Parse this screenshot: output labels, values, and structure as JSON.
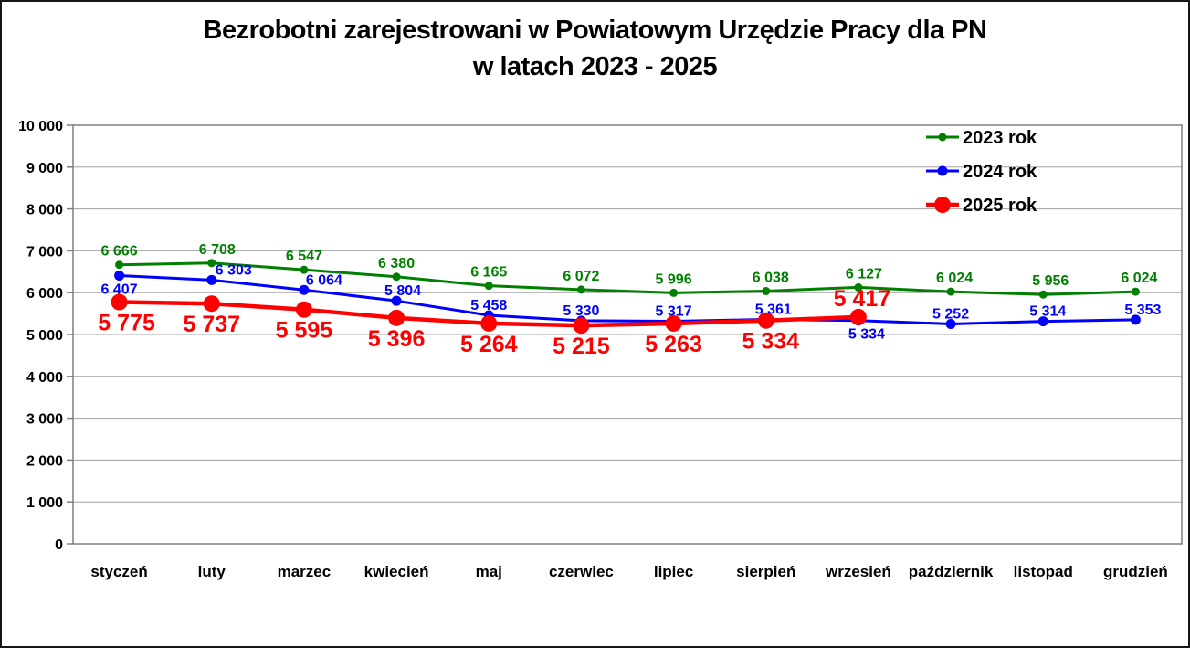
{
  "title": {
    "line1": "Bezrobotni zarejestrowani w Powiatowym Urzędzie Pracy dla PN",
    "line2": "w latach 2023 - 2025"
  },
  "chart_data": {
    "type": "line",
    "title": "Bezrobotni zarejestrowani w Powiatowym Urzędzie Pracy dla PN w latach 2023 - 2025",
    "xlabel": "",
    "ylabel": "",
    "grid": "horizontal",
    "legend_position": "top-right",
    "ylim": [
      0,
      10000
    ],
    "ytick_step": 1000,
    "ytick_labels": [
      "0",
      "1 000",
      "2 000",
      "3 000",
      "4 000",
      "5 000",
      "6 000",
      "7 000",
      "8 000",
      "9 000",
      "10 000"
    ],
    "categories": [
      "styczeń",
      "luty",
      "marzec",
      "kwiecień",
      "maj",
      "czerwiec",
      "lipiec",
      "sierpień",
      "wrzesień",
      "październik",
      "listopad",
      "grudzień"
    ],
    "series": [
      {
        "name": "2023 rok",
        "color": "#008000",
        "line_width": 3,
        "marker_radius": 4.5,
        "label_font_size": 16,
        "label_dy_above": -10,
        "label_dy_below": 20,
        "values": [
          6666,
          6708,
          6547,
          6380,
          6165,
          6072,
          5996,
          6038,
          6127,
          6024,
          5956,
          6024
        ],
        "labels": [
          "6 666",
          "6 708",
          "6 547",
          "6 380",
          "6 165",
          "6 072",
          "5 996",
          "6 038",
          "6 127",
          "6 024",
          "5 956",
          "6 024"
        ],
        "label_placement": [
          "above",
          "above",
          "above",
          "above",
          "above",
          "above",
          "above",
          "above",
          "above",
          "above",
          "above",
          "above"
        ],
        "label_dx": [
          0,
          6,
          0,
          0,
          0,
          0,
          0,
          5,
          6,
          4,
          8,
          4
        ]
      },
      {
        "name": "2024 rok",
        "color": "#0000ff",
        "line_width": 3,
        "marker_radius": 5.5,
        "label_font_size": 16,
        "label_dy_above": -6,
        "label_dy_below": 20,
        "values": [
          6407,
          6303,
          6064,
          5804,
          5458,
          5330,
          5317,
          5361,
          5334,
          5252,
          5314,
          5353
        ],
        "labels": [
          "6 407",
          "6 303",
          "6 064",
          "5 804",
          "5 458",
          "5 330",
          "5 317",
          "5 361",
          "5 334",
          "5 252",
          "5 314",
          "5 353"
        ],
        "label_placement": [
          "below",
          "above",
          "above",
          "above",
          "above",
          "above",
          "above",
          "above",
          "below",
          "above",
          "above",
          "above"
        ],
        "label_dx": [
          0,
          24,
          22,
          7,
          0,
          0,
          0,
          8,
          9,
          0,
          5,
          8
        ]
      },
      {
        "name": "2025 rok",
        "color": "#ff0000",
        "line_width": 4.5,
        "marker_radius": 9,
        "label_font_size": 25,
        "label_dy_above": -12,
        "label_dy_below": 31,
        "values": [
          5775,
          5737,
          5595,
          5396,
          5264,
          5215,
          5263,
          5334,
          5417
        ],
        "labels": [
          "5 775",
          "5 737",
          "5 595",
          "5 396",
          "5 264",
          "5 215",
          "5 263",
          "5 334",
          "5 417"
        ],
        "label_placement": [
          "below",
          "below",
          "below",
          "below",
          "below",
          "below",
          "below",
          "below",
          "above"
        ],
        "label_dx": [
          8,
          0,
          0,
          0,
          0,
          0,
          0,
          5,
          4
        ]
      }
    ],
    "style": {
      "gridline_color": "#a3a3a3",
      "plot_border_color": "#7f7f7f",
      "axis_text_color": "#000000",
      "legend_text_color": "#000000"
    }
  }
}
